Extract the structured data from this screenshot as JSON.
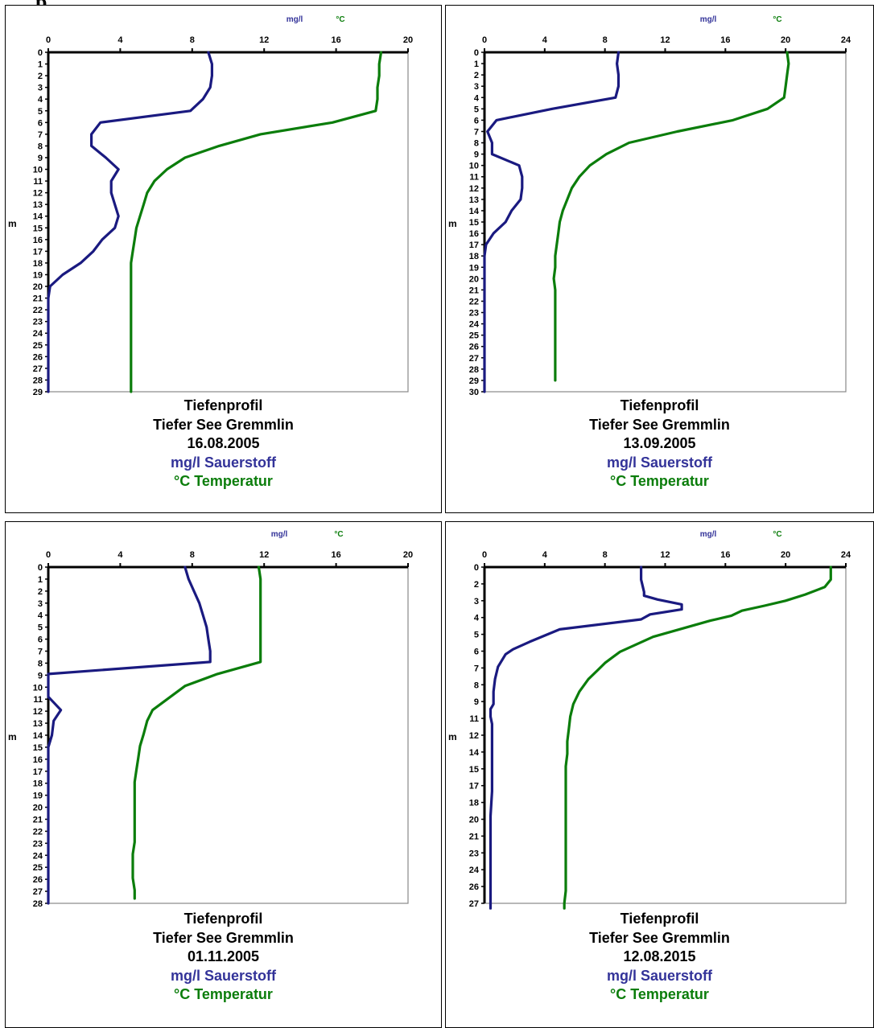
{
  "page": {
    "heading": "p"
  },
  "colors": {
    "oxygen": "#1a1a80",
    "temperature": "#0b7d0b",
    "frame": "#888888",
    "axis": "#000000"
  },
  "chart_data": [
    {
      "type": "line",
      "title": "Tiefenprofil",
      "subtitle": "Tiefer See Gremmlin",
      "date": "16.08.2005",
      "legend": [
        "mg/l Sauerstoff",
        "°C Temperatur"
      ],
      "x_units": [
        "mg/l",
        "°C"
      ],
      "xlim": [
        0,
        20
      ],
      "x_ticks": [
        0,
        4,
        8,
        12,
        16,
        20
      ],
      "ylabel": "m",
      "ylim": [
        0,
        29
      ],
      "y_ticks": [
        "0",
        "1",
        "2",
        "3",
        "4",
        "5",
        "6",
        "7",
        "8",
        "9",
        "10",
        "11",
        "12",
        "13",
        "14",
        "15",
        "16",
        "17",
        "18",
        "19",
        "20",
        "21",
        "22",
        "23",
        "24",
        "25",
        "26",
        "27",
        "28",
        "29"
      ],
      "series": [
        {
          "name": "mg/l Sauerstoff",
          "color": "#1a1a80",
          "x": [
            8.9,
            9.1,
            9.1,
            9.0,
            8.6,
            7.9,
            2.9,
            2.4,
            2.4,
            3.2,
            3.9,
            3.5,
            3.5,
            3.7,
            3.9,
            3.7,
            3.0,
            2.5,
            1.8,
            0.8,
            0.1,
            0.0,
            0.0,
            0.0,
            0.0,
            0.0,
            0.0,
            0.0,
            0.0,
            0.0
          ],
          "y": [
            0,
            1,
            2,
            3,
            4,
            5,
            6,
            7,
            8,
            9,
            10,
            11,
            12,
            13,
            14,
            15,
            16,
            17,
            18,
            19,
            20,
            21,
            22,
            23,
            24,
            25,
            26,
            27,
            28,
            29
          ]
        },
        {
          "name": "°C Temperatur",
          "color": "#0b7d0b",
          "x": [
            18.5,
            18.4,
            18.4,
            18.3,
            18.3,
            18.2,
            15.8,
            11.8,
            9.5,
            7.6,
            6.6,
            5.9,
            5.5,
            5.3,
            5.1,
            4.9,
            4.8,
            4.7,
            4.6,
            4.6,
            4.6,
            4.6,
            4.6,
            4.6,
            4.6,
            4.6,
            4.6,
            4.6,
            4.6,
            4.6
          ],
          "y": [
            0,
            1,
            2,
            3,
            4,
            5,
            6,
            7,
            8,
            9,
            10,
            11,
            12,
            13,
            14,
            15,
            16,
            17,
            18,
            19,
            20,
            21,
            22,
            23,
            24,
            25,
            26,
            27,
            28,
            29
          ]
        }
      ]
    },
    {
      "type": "line",
      "title": "Tiefenprofil",
      "subtitle": "Tiefer See Gremmlin",
      "date": "13.09.2005",
      "legend": [
        "mg/l Sauerstoff",
        "°C Temperatur"
      ],
      "x_units": [
        "mg/l",
        "°C"
      ],
      "xlim": [
        0,
        24
      ],
      "x_ticks": [
        0,
        4,
        8,
        12,
        16,
        20,
        24
      ],
      "ylabel": "m",
      "ylim": [
        0,
        30
      ],
      "y_ticks": [
        "0",
        "1",
        "2",
        "3",
        "4",
        "5",
        "6",
        "7",
        "8",
        "9",
        "10",
        "11",
        "12",
        "13",
        "14",
        "15",
        "16",
        "17",
        "18",
        "19",
        "20",
        "21",
        "22",
        "23",
        "24",
        "25",
        "26",
        "27",
        "28",
        "29",
        "30"
      ],
      "series": [
        {
          "name": "mg/l Sauerstoff",
          "color": "#1a1a80",
          "x": [
            8.9,
            8.8,
            8.9,
            8.9,
            8.7,
            4.5,
            0.8,
            0.2,
            0.5,
            0.5,
            2.3,
            2.5,
            2.5,
            2.4,
            1.8,
            1.4,
            0.6,
            0.1,
            0.0,
            0.0,
            0.0,
            0.0,
            0.0,
            0.0,
            0.0,
            0.0,
            0.0,
            0.0,
            0.0,
            0.0,
            0.0
          ],
          "y": [
            0,
            1,
            2,
            3,
            4,
            5,
            6,
            7,
            8,
            9,
            10,
            11,
            12,
            13,
            14,
            15,
            16,
            17,
            18,
            19,
            20,
            21,
            22,
            23,
            24,
            25,
            26,
            27,
            28,
            29,
            30
          ]
        },
        {
          "name": "°C Temperatur",
          "color": "#0b7d0b",
          "x": [
            20.1,
            20.2,
            20.1,
            20.0,
            19.9,
            18.8,
            16.5,
            12.8,
            9.6,
            8.1,
            7.0,
            6.3,
            5.8,
            5.5,
            5.2,
            5.0,
            4.9,
            4.8,
            4.7,
            4.7,
            4.6,
            4.7,
            4.7,
            4.7,
            4.7,
            4.7,
            4.7,
            4.7,
            4.7,
            4.7
          ],
          "y": [
            0,
            1,
            2,
            3,
            4,
            5,
            6,
            7,
            8,
            9,
            10,
            11,
            12,
            13,
            14,
            15,
            16,
            17,
            18,
            19,
            20,
            21,
            22,
            23,
            24,
            25,
            26,
            27,
            28,
            29
          ]
        }
      ]
    },
    {
      "type": "line",
      "title": "Tiefenprofil",
      "subtitle": "Tiefer See Gremmlin",
      "date": "01.11.2005",
      "legend": [
        "mg/l Sauerstoff",
        "°C Temperatur"
      ],
      "x_units": [
        "mg/l",
        "°C"
      ],
      "xlim": [
        0,
        20
      ],
      "x_ticks": [
        0,
        4,
        8,
        12,
        16,
        20
      ],
      "ylabel": "m",
      "ylim": [
        0,
        28
      ],
      "y_ticks": [
        "0",
        "1",
        "2",
        "3",
        "4",
        "5",
        "6",
        "7",
        "8",
        "9",
        "10",
        "11",
        "12",
        "13",
        "14",
        "15",
        "16",
        "17",
        "18",
        "19",
        "20",
        "21",
        "22",
        "23",
        "24",
        "25",
        "26",
        "27",
        "28"
      ],
      "series": [
        {
          "name": "mg/l Sauerstoff",
          "color": "#1a1a80",
          "x": [
            7.6,
            7.8,
            8.1,
            8.4,
            8.6,
            8.8,
            8.9,
            9.0,
            9.0,
            0.0,
            0.0,
            0.0,
            0.7,
            0.3,
            0.2,
            0.0,
            0.0,
            0.0,
            0.0,
            0.0,
            0.0,
            0.0,
            0.0,
            0.0,
            0.0,
            0.0,
            0.0,
            0.0,
            0.0
          ],
          "y": [
            0,
            1,
            2,
            3,
            4,
            5,
            6,
            7,
            7.9,
            8.9,
            9.5,
            10.8,
            11.9,
            12.8,
            14.0,
            15.0,
            16,
            17,
            18,
            19,
            20,
            21,
            22,
            23,
            24,
            25,
            26,
            27,
            28
          ]
        },
        {
          "name": "°C Temperatur",
          "color": "#0b7d0b",
          "x": [
            11.7,
            11.8,
            11.8,
            11.8,
            11.8,
            11.8,
            11.8,
            11.8,
            11.8,
            9.4,
            7.6,
            5.8,
            5.5,
            5.3,
            5.1,
            5.0,
            4.9,
            4.8,
            4.8,
            4.8,
            4.8,
            4.8,
            4.8,
            4.7,
            4.7,
            4.7,
            4.8,
            4.8
          ],
          "y": [
            0,
            1,
            2,
            3,
            4,
            5,
            6,
            7,
            7.9,
            8.9,
            9.9,
            11.9,
            12.8,
            13.9,
            14.9,
            15.9,
            16.9,
            17.9,
            18.9,
            19.9,
            20.9,
            21.9,
            22.9,
            23.9,
            24.9,
            25.9,
            26.9,
            27.6
          ]
        }
      ]
    },
    {
      "type": "line",
      "title": "Tiefenprofil",
      "subtitle": "Tiefer See Gremmlin",
      "date": "12.08.2015",
      "legend": [
        "mg/l Sauerstoff",
        "°C Temperatur"
      ],
      "x_units": [
        "mg/l",
        "°C"
      ],
      "xlim": [
        0,
        24
      ],
      "x_ticks": [
        0,
        4,
        8,
        12,
        16,
        20,
        24
      ],
      "ylabel": "m",
      "ylim": [
        0,
        27
      ],
      "y_ticks": [
        "0",
        "2",
        "3",
        "4",
        "5",
        "6",
        "7",
        "8",
        "9",
        "11",
        "12",
        "14",
        "15",
        "17",
        "18",
        "20",
        "21",
        "23",
        "24",
        "26",
        "27"
      ],
      "series": [
        {
          "name": "mg/l Sauerstoff",
          "color": "#1a1a80",
          "x": [
            10.4,
            10.4,
            10.6,
            10.6,
            11.5,
            13.1,
            13.1,
            11.0,
            10.4,
            5.0,
            3.0,
            1.9,
            1.4,
            1.2,
            0.9,
            0.7,
            0.6,
            0.6,
            0.6,
            0.5,
            0.4,
            0.4,
            0.4,
            0.5,
            0.5,
            0.5,
            0.5,
            0.5,
            0.4,
            0.4,
            0.4,
            0.4,
            0.4,
            0.4,
            0.4
          ],
          "y": [
            0,
            1,
            2,
            2.3,
            2.6,
            3.0,
            3.4,
            3.8,
            4.2,
            5.0,
            6.0,
            6.6,
            7.0,
            7.4,
            8.0,
            9.0,
            10.0,
            10.5,
            11.0,
            11.2,
            11.4,
            11.6,
            12.0,
            12.6,
            14.0,
            15.0,
            17.0,
            18.0,
            20.0,
            21.0,
            23.0,
            24.0,
            26.0,
            27.0,
            27.4
          ]
        },
        {
          "name": "°C Temperatur",
          "color": "#0b7d0b",
          "x": [
            23.0,
            23.0,
            22.6,
            21.3,
            20.0,
            18.6,
            17.1,
            16.4,
            15.0,
            11.2,
            9.0,
            8.0,
            7.5,
            6.9,
            6.3,
            5.9,
            5.7,
            5.6,
            5.5,
            5.5,
            5.5,
            5.4,
            5.4,
            5.4,
            5.4,
            5.4,
            5.4,
            5.4,
            5.4,
            5.3,
            5.3
          ],
          "y": [
            0,
            1,
            1.6,
            2.2,
            2.7,
            3.1,
            3.5,
            3.9,
            4.3,
            5.6,
            6.8,
            7.7,
            8.3,
            9.0,
            10.0,
            11.0,
            12.0,
            13.0,
            14.0,
            14.5,
            15.0,
            16.0,
            17.0,
            18.0,
            20.0,
            21.0,
            23.0,
            24.0,
            26.0,
            27.0,
            27.4
          ]
        }
      ]
    }
  ]
}
